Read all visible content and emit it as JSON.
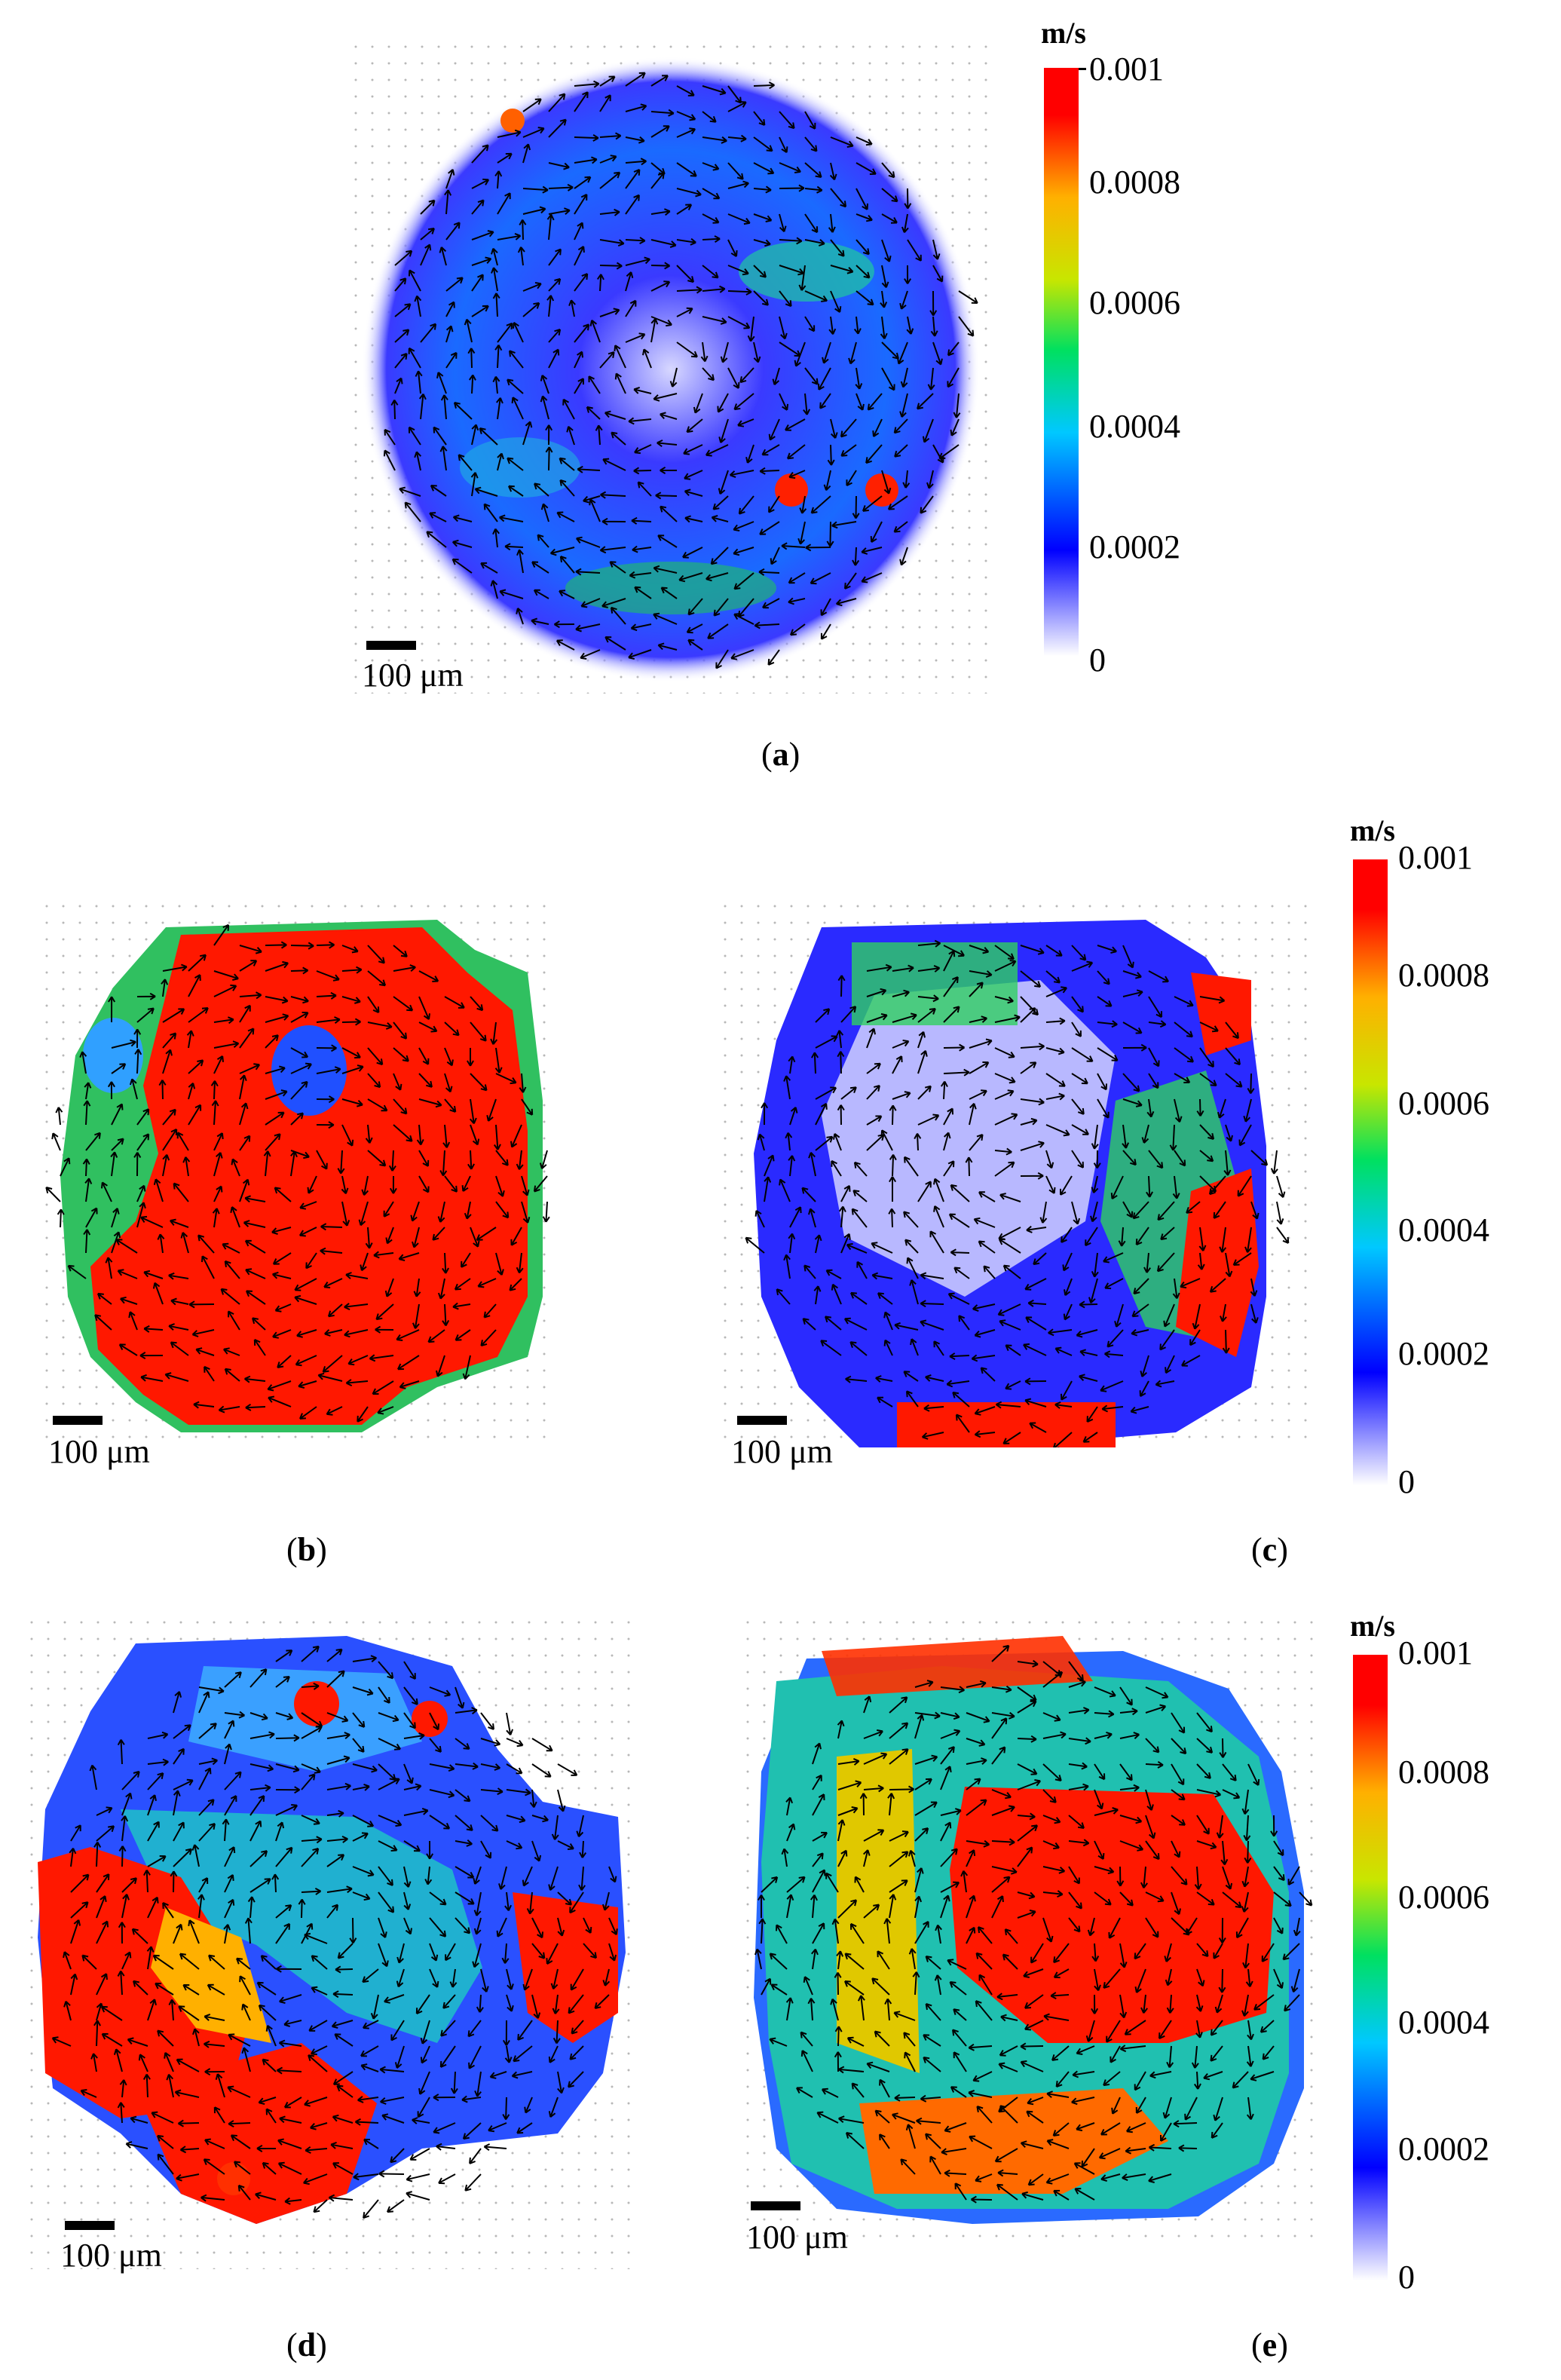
{
  "scale_bar": "100 μm",
  "colorbar": {
    "unit": "m/s",
    "ticks": [
      "0.001",
      "0.0008",
      "0.0006",
      "0.0004",
      "0.0002",
      "0"
    ]
  },
  "captions": {
    "a": "a",
    "b": "b",
    "c": "c",
    "d": "d",
    "e": "e"
  },
  "colors": {
    "low": "#0000ff",
    "mid": "#00e060",
    "high": "#ff0000",
    "arrow": "#000000"
  },
  "panels": [
    {
      "id": "a",
      "palette": "mostly-blue"
    },
    {
      "id": "b",
      "palette": "mostly-red"
    },
    {
      "id": "c",
      "palette": "mostly-blue"
    },
    {
      "id": "d",
      "palette": "mixed"
    },
    {
      "id": "e",
      "palette": "mixed-red-center"
    }
  ]
}
